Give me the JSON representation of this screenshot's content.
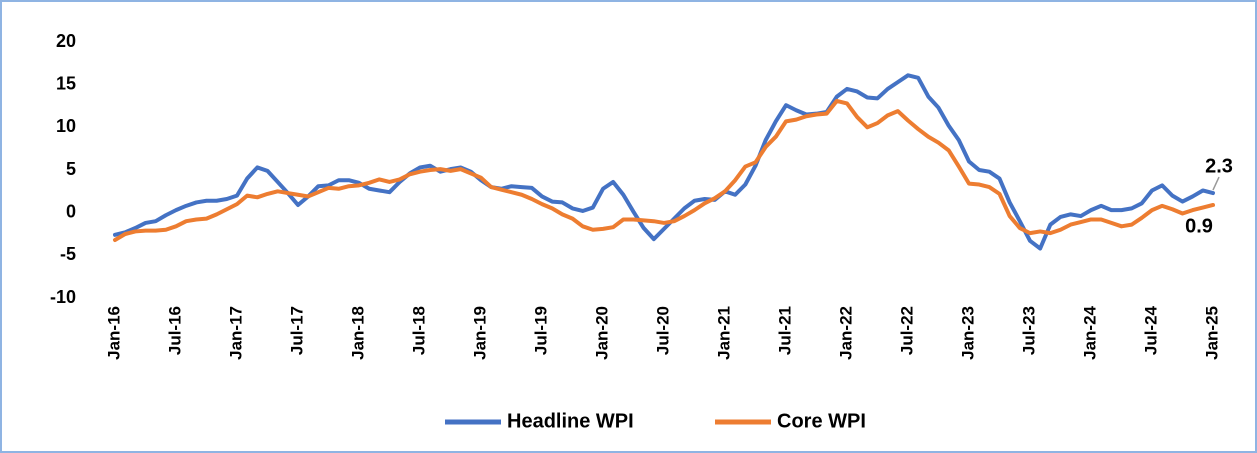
{
  "chart_data": {
    "type": "line",
    "categories": [
      "Jan-16",
      null,
      null,
      null,
      null,
      null,
      "Jul-16",
      null,
      null,
      null,
      null,
      null,
      "Jan-17",
      null,
      null,
      null,
      null,
      null,
      "Jul-17",
      null,
      null,
      null,
      null,
      null,
      "Jan-18",
      null,
      null,
      null,
      null,
      null,
      "Jul-18",
      null,
      null,
      null,
      null,
      null,
      "Jan-19",
      null,
      null,
      null,
      null,
      null,
      "Jul-19",
      null,
      null,
      null,
      null,
      null,
      "Jan-20",
      null,
      null,
      null,
      null,
      null,
      "Jul-20",
      null,
      null,
      null,
      null,
      null,
      "Jan-21",
      null,
      null,
      null,
      null,
      null,
      "Jul-21",
      null,
      null,
      null,
      null,
      null,
      "Jan-22",
      null,
      null,
      null,
      null,
      null,
      "Jul-22",
      null,
      null,
      null,
      null,
      null,
      "Jan-23",
      null,
      null,
      null,
      null,
      null,
      "Jul-23",
      null,
      null,
      null,
      null,
      null,
      "Jan-24",
      null,
      null,
      null,
      null,
      null,
      "Jul-24",
      null,
      null,
      null,
      null,
      null,
      "Jan-25"
    ],
    "series": [
      {
        "name": "Headline WPI",
        "color": "#4472c4",
        "values": [
          -2.6,
          -2.3,
          -1.8,
          -1.2,
          -1.0,
          -0.3,
          0.3,
          0.8,
          1.2,
          1.4,
          1.4,
          1.6,
          2.0,
          4.0,
          5.3,
          4.9,
          3.6,
          2.3,
          0.9,
          1.9,
          3.1,
          3.2,
          3.8,
          3.8,
          3.5,
          2.8,
          2.6,
          2.4,
          3.6,
          4.6,
          5.3,
          5.5,
          4.8,
          5.1,
          5.3,
          4.8,
          3.8,
          3.0,
          2.8,
          3.1,
          3.0,
          2.9,
          1.9,
          1.3,
          1.2,
          0.5,
          0.2,
          0.6,
          2.8,
          3.6,
          2.1,
          0.1,
          -1.8,
          -3.1,
          -1.9,
          -0.7,
          0.5,
          1.4,
          1.6,
          1.5,
          2.5,
          2.1,
          3.3,
          5.5,
          8.5,
          10.7,
          12.6,
          12.0,
          11.5,
          11.6,
          11.8,
          13.6,
          14.5,
          14.2,
          13.5,
          13.4,
          14.5,
          15.3,
          16.1,
          15.8,
          13.6,
          12.3,
          10.2,
          8.5,
          6.0,
          5.0,
          4.8,
          4.0,
          1.2,
          -1.0,
          -3.3,
          -4.2,
          -1.4,
          -0.5,
          -0.2,
          -0.4,
          0.3,
          0.8,
          0.3,
          0.3,
          0.5,
          1.1,
          2.6,
          3.2,
          2.0,
          1.3,
          1.9,
          2.6,
          2.3
        ]
      },
      {
        "name": "Core WPI",
        "color": "#ed7d31",
        "values": [
          -3.2,
          -2.5,
          -2.2,
          -2.1,
          -2.1,
          -2.0,
          -1.6,
          -1.0,
          -0.8,
          -0.7,
          -0.2,
          0.4,
          1.0,
          2.0,
          1.8,
          2.2,
          2.5,
          2.3,
          2.1,
          1.9,
          2.4,
          2.9,
          2.8,
          3.1,
          3.2,
          3.5,
          3.9,
          3.6,
          3.9,
          4.5,
          4.8,
          5.0,
          5.1,
          4.9,
          5.1,
          4.6,
          4.1,
          3.0,
          2.7,
          2.4,
          2.1,
          1.6,
          1.0,
          0.5,
          -0.2,
          -0.7,
          -1.6,
          -2.0,
          -1.9,
          -1.7,
          -0.8,
          -0.8,
          -0.9,
          -1.0,
          -1.2,
          -1.0,
          -0.4,
          0.3,
          1.1,
          1.7,
          2.5,
          3.8,
          5.4,
          5.9,
          7.7,
          8.9,
          10.7,
          10.9,
          11.3,
          11.5,
          11.6,
          13.1,
          12.8,
          11.2,
          10.0,
          10.5,
          11.4,
          11.9,
          10.8,
          9.8,
          8.9,
          8.2,
          7.3,
          5.4,
          3.4,
          3.3,
          3.0,
          2.2,
          -0.4,
          -1.8,
          -2.4,
          -2.2,
          -2.4,
          -2.0,
          -1.4,
          -1.1,
          -0.8,
          -0.8,
          -1.2,
          -1.6,
          -1.4,
          -0.6,
          0.3,
          0.8,
          0.4,
          -0.1,
          0.3,
          0.6,
          0.9
        ]
      }
    ],
    "ylim": [
      -10,
      20
    ],
    "yticks": [
      20,
      15,
      10,
      5,
      0,
      -5,
      -10
    ],
    "grid": false,
    "legend": "bottom"
  }
}
